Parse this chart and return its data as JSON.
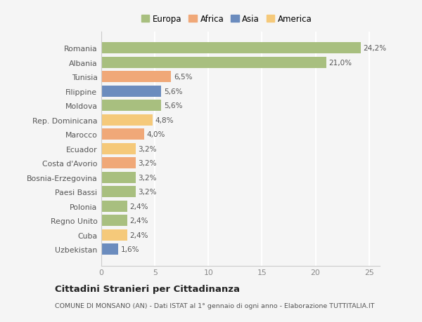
{
  "categories": [
    "Uzbekistan",
    "Cuba",
    "Regno Unito",
    "Polonia",
    "Paesi Bassi",
    "Bosnia-Erzegovina",
    "Costa d'Avorio",
    "Ecuador",
    "Marocco",
    "Rep. Dominicana",
    "Moldova",
    "Filippine",
    "Tunisia",
    "Albania",
    "Romania"
  ],
  "values": [
    1.6,
    2.4,
    2.4,
    2.4,
    3.2,
    3.2,
    3.2,
    3.2,
    4.0,
    4.8,
    5.6,
    5.6,
    6.5,
    21.0,
    24.2
  ],
  "labels": [
    "1,6%",
    "2,4%",
    "2,4%",
    "2,4%",
    "3,2%",
    "3,2%",
    "3,2%",
    "3,2%",
    "4,0%",
    "4,8%",
    "5,6%",
    "5,6%",
    "6,5%",
    "21,0%",
    "24,2%"
  ],
  "colors": [
    "#6b8cbe",
    "#f5c97a",
    "#a8bf7f",
    "#a8bf7f",
    "#a8bf7f",
    "#a8bf7f",
    "#f0a878",
    "#f5c97a",
    "#f0a878",
    "#f5c97a",
    "#a8bf7f",
    "#6b8cbe",
    "#f0a878",
    "#a8bf7f",
    "#a8bf7f"
  ],
  "legend": [
    {
      "label": "Europa",
      "color": "#a8bf7f"
    },
    {
      "label": "Africa",
      "color": "#f0a878"
    },
    {
      "label": "Asia",
      "color": "#6b8cbe"
    },
    {
      "label": "America",
      "color": "#f5c97a"
    }
  ],
  "title": "Cittadini Stranieri per Cittadinanza",
  "subtitle": "COMUNE DI MONSANO (AN) - Dati ISTAT al 1° gennaio di ogni anno - Elaborazione TUTTITALIA.IT",
  "xlim": [
    0,
    26
  ],
  "xticks": [
    0,
    5,
    10,
    15,
    20,
    25
  ],
  "background_color": "#f5f5f5",
  "grid_color": "#ffffff",
  "bar_height": 0.78
}
